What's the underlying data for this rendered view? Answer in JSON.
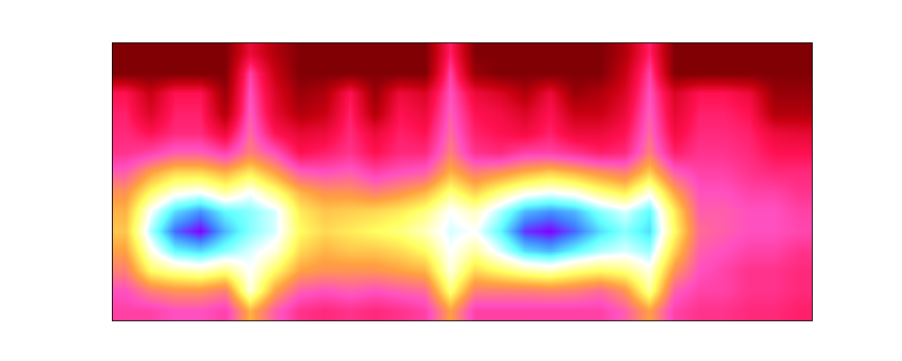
{
  "chart_data": {
    "type": "heatmap",
    "tick_labels": false,
    "grid": false,
    "zlim": [
      0,
      100
    ],
    "cells": [
      [
        5,
        5,
        5,
        5,
        5,
        30,
        15,
        5,
        5,
        5,
        5,
        5,
        5,
        38,
        5,
        5,
        5,
        5,
        5,
        5,
        15,
        38,
        5,
        5,
        5,
        5,
        5,
        5
      ],
      [
        5,
        5,
        5,
        5,
        5,
        45,
        20,
        5,
        5,
        5,
        5,
        5,
        5,
        45,
        10,
        5,
        5,
        5,
        5,
        5,
        20,
        45,
        5,
        5,
        5,
        5,
        5,
        5
      ],
      [
        35,
        20,
        35,
        35,
        10,
        48,
        25,
        10,
        15,
        35,
        10,
        30,
        25,
        48,
        30,
        25,
        15,
        30,
        10,
        15,
        25,
        48,
        25,
        35,
        35,
        30,
        10,
        10
      ],
      [
        38,
        25,
        38,
        38,
        15,
        50,
        28,
        15,
        20,
        38,
        15,
        35,
        30,
        50,
        35,
        32,
        25,
        35,
        20,
        20,
        30,
        50,
        28,
        38,
        38,
        35,
        15,
        15
      ],
      [
        40,
        35,
        40,
        40,
        30,
        52,
        35,
        28,
        30,
        40,
        30,
        38,
        35,
        52,
        38,
        35,
        32,
        38,
        30,
        30,
        35,
        52,
        32,
        40,
        40,
        38,
        30,
        28
      ],
      [
        42,
        45,
        50,
        50,
        45,
        55,
        48,
        35,
        38,
        42,
        35,
        40,
        40,
        55,
        42,
        40,
        45,
        45,
        42,
        38,
        40,
        55,
        38,
        42,
        42,
        40,
        35,
        35
      ],
      [
        50,
        60,
        66,
        66,
        62,
        68,
        60,
        50,
        48,
        50,
        45,
        48,
        50,
        62,
        55,
        58,
        62,
        65,
        62,
        58,
        55,
        65,
        50,
        45,
        45,
        42,
        40,
        40
      ],
      [
        58,
        70,
        78,
        80,
        74,
        80,
        72,
        62,
        58,
        58,
        55,
        58,
        62,
        72,
        65,
        72,
        78,
        80,
        78,
        72,
        68,
        78,
        60,
        48,
        48,
        45,
        45,
        42
      ],
      [
        62,
        80,
        90,
        94,
        88,
        86,
        82,
        68,
        64,
        65,
        66,
        68,
        72,
        80,
        76,
        84,
        92,
        94,
        92,
        86,
        82,
        88,
        68,
        50,
        50,
        48,
        48,
        45
      ],
      [
        64,
        84,
        96,
        100,
        92,
        86,
        82,
        70,
        66,
        68,
        70,
        72,
        76,
        82,
        80,
        88,
        98,
        100,
        96,
        90,
        86,
        90,
        70,
        52,
        50,
        48,
        48,
        46
      ],
      [
        60,
        78,
        88,
        90,
        86,
        82,
        78,
        66,
        62,
        64,
        64,
        66,
        70,
        80,
        74,
        82,
        90,
        92,
        88,
        84,
        82,
        85,
        65,
        50,
        48,
        45,
        45,
        42
      ],
      [
        55,
        70,
        74,
        76,
        72,
        80,
        70,
        60,
        58,
        58,
        58,
        60,
        62,
        78,
        66,
        70,
        74,
        76,
        72,
        70,
        72,
        78,
        58,
        48,
        45,
        42,
        42,
        40
      ],
      [
        48,
        55,
        58,
        58,
        55,
        78,
        60,
        50,
        48,
        50,
        48,
        50,
        52,
        72,
        55,
        55,
        55,
        56,
        55,
        52,
        58,
        74,
        50,
        45,
        45,
        42,
        42,
        40
      ],
      [
        45,
        45,
        48,
        48,
        45,
        62,
        50,
        42,
        40,
        42,
        40,
        42,
        45,
        60,
        45,
        45,
        45,
        45,
        45,
        45,
        50,
        60,
        45,
        42,
        42,
        40,
        40,
        38
      ]
    ]
  }
}
